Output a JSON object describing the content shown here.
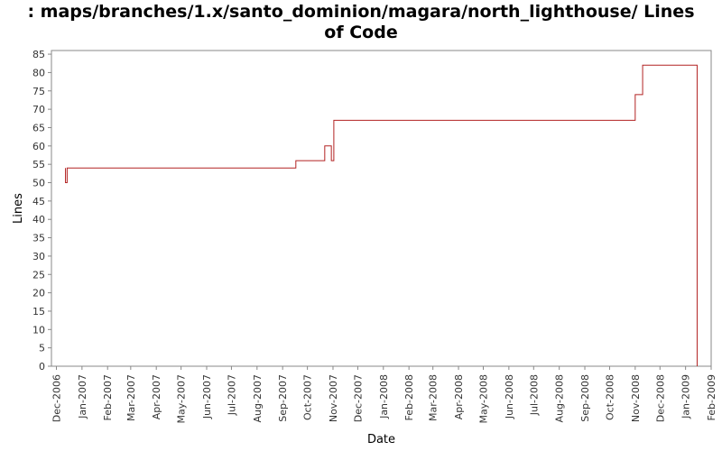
{
  "chart_data": {
    "type": "line",
    "title_lines": [
      ": maps/branches/1.x/santo_dominion/magara/north_lighthouse/ Lines",
      "of Code"
    ],
    "xlabel": "Date",
    "ylabel": "Lines",
    "ylim": [
      0,
      86
    ],
    "y_ticks": [
      0,
      5,
      10,
      15,
      20,
      25,
      30,
      35,
      40,
      45,
      50,
      55,
      60,
      65,
      70,
      75,
      80,
      85
    ],
    "xlim": [
      "2006-11-25",
      "2009-02-01"
    ],
    "x_ticks": [
      {
        "date": "2006-12-01",
        "label": "Dec-2006"
      },
      {
        "date": "2007-01-01",
        "label": "Jan-2007"
      },
      {
        "date": "2007-02-01",
        "label": "Feb-2007"
      },
      {
        "date": "2007-03-01",
        "label": "Mar-2007"
      },
      {
        "date": "2007-04-01",
        "label": "Apr-2007"
      },
      {
        "date": "2007-05-01",
        "label": "May-2007"
      },
      {
        "date": "2007-06-01",
        "label": "Jun-2007"
      },
      {
        "date": "2007-07-01",
        "label": "Jul-2007"
      },
      {
        "date": "2007-08-01",
        "label": "Aug-2007"
      },
      {
        "date": "2007-09-01",
        "label": "Sep-2007"
      },
      {
        "date": "2007-10-01",
        "label": "Oct-2007"
      },
      {
        "date": "2007-11-01",
        "label": "Nov-2007"
      },
      {
        "date": "2007-12-01",
        "label": "Dec-2007"
      },
      {
        "date": "2008-01-01",
        "label": "Jan-2008"
      },
      {
        "date": "2008-02-01",
        "label": "Feb-2008"
      },
      {
        "date": "2008-03-01",
        "label": "Mar-2008"
      },
      {
        "date": "2008-04-01",
        "label": "Apr-2008"
      },
      {
        "date": "2008-05-01",
        "label": "May-2008"
      },
      {
        "date": "2008-06-01",
        "label": "Jun-2008"
      },
      {
        "date": "2008-07-01",
        "label": "Jul-2008"
      },
      {
        "date": "2008-08-01",
        "label": "Aug-2008"
      },
      {
        "date": "2008-09-01",
        "label": "Sep-2008"
      },
      {
        "date": "2008-10-01",
        "label": "Oct-2008"
      },
      {
        "date": "2008-11-01",
        "label": "Nov-2008"
      },
      {
        "date": "2008-12-01",
        "label": "Dec-2008"
      },
      {
        "date": "2009-01-01",
        "label": "Jan-2009"
      },
      {
        "date": "2009-02-01",
        "label": "Feb-2009"
      }
    ],
    "series": [
      {
        "line_color": "#b22222",
        "step": true,
        "points": [
          {
            "x": "2006-12-12",
            "y": 54
          },
          {
            "x": "2006-12-12",
            "y": 50
          },
          {
            "x": "2006-12-14",
            "y": 50
          },
          {
            "x": "2006-12-14",
            "y": 54
          },
          {
            "x": "2007-09-17",
            "y": 54
          },
          {
            "x": "2007-09-17",
            "y": 56
          },
          {
            "x": "2007-10-22",
            "y": 56
          },
          {
            "x": "2007-10-22",
            "y": 60
          },
          {
            "x": "2007-10-30",
            "y": 60
          },
          {
            "x": "2007-10-30",
            "y": 56
          },
          {
            "x": "2007-11-02",
            "y": 56
          },
          {
            "x": "2007-11-02",
            "y": 67
          },
          {
            "x": "2008-11-01",
            "y": 67
          },
          {
            "x": "2008-11-01",
            "y": 74
          },
          {
            "x": "2008-11-10",
            "y": 74
          },
          {
            "x": "2008-11-10",
            "y": 82
          },
          {
            "x": "2009-01-15",
            "y": 82
          },
          {
            "x": "2009-01-15",
            "y": 0
          }
        ]
      }
    ],
    "grid": false,
    "legend": "none"
  }
}
